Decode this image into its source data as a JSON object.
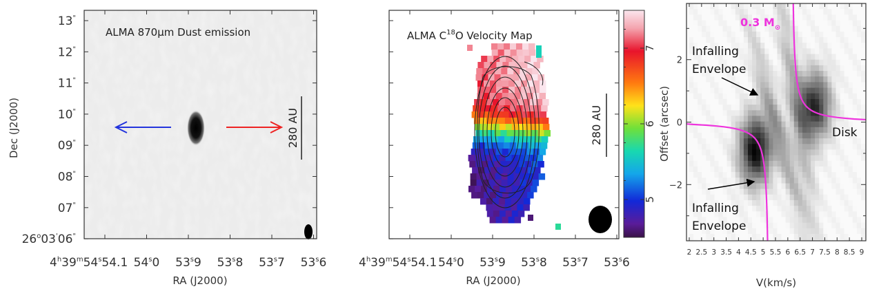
{
  "colors": {
    "blue_arrow": "#2233dd",
    "red_arrow": "#ee2222",
    "magenta": "#ee33dd",
    "axis_text": "#333333"
  },
  "chart_data": [
    {
      "type": "heatmap",
      "panel": "dust-map",
      "title": "ALMA 870μm Dust emission",
      "xlabel": "RA (J2000)",
      "ylabel": "Dec (J2000)",
      "xticks": [
        "54.1",
        "54.0",
        "53.9",
        "53.8",
        "53.7",
        "53.6"
      ],
      "x_first_prefix": "4",
      "x_first_h": "h",
      "x_first_mid": "39",
      "x_first_m": "m",
      "x_first_sec": "54",
      "x_sec_symbol": "s",
      "yticks": [
        "13",
        "12",
        "11",
        "10",
        "09",
        "08",
        "07",
        "06"
      ],
      "y_last_prefix": "26",
      "y_last_deg": "o",
      "y_last_mid": "03",
      "y_arcmin": "'",
      "y_arcsec": "\"",
      "scale_bar": "280 AU",
      "source_position": {
        "ra_s": 53.91,
        "dec_s": 9.65
      },
      "arrows": [
        {
          "direction": "left",
          "color": "blue"
        },
        {
          "direction": "right",
          "color": "red"
        }
      ]
    },
    {
      "type": "heatmap",
      "panel": "velocity-map",
      "title_prefix": "ALMA C",
      "title_sup": "18",
      "title_suffix": "O Velocity Map",
      "xlabel": "RA (J2000)",
      "xticks": [
        "54.1",
        "54.0",
        "53.9",
        "53.8",
        "53.7",
        "53.6"
      ],
      "x_first_prefix": "4",
      "x_first_h": "h",
      "x_first_mid": "39",
      "x_first_m": "m",
      "x_first_sec": "54",
      "x_sec_symbol": "s",
      "scale_bar": "280 AU",
      "colorbar": {
        "label_ticks": [
          "7",
          "6",
          "5"
        ],
        "range": [
          4.5,
          7.5
        ]
      },
      "velocity_gradient": {
        "north": 7.3,
        "south": 4.8
      }
    },
    {
      "type": "heatmap",
      "panel": "pv-diagram",
      "xlabel": "V(km/s)",
      "ylabel": "Offset (arcsec)",
      "xticks": [
        "2",
        "2.5",
        "3",
        "3.5",
        "4",
        "4.5",
        "5",
        "5.5",
        "6",
        "6.5",
        "7",
        "7.5",
        "8",
        "8.5",
        "9"
      ],
      "yticks": [
        "2",
        "0",
        "−2"
      ],
      "xlim": [
        2,
        9
      ],
      "ylim": [
        -3.8,
        3.8
      ],
      "mass_label": "0.3 M",
      "mass_symbol": "⊙",
      "annotations": [
        "Infalling",
        "Envelope",
        "Infalling",
        "Envelope",
        "Disk"
      ],
      "peaks": [
        {
          "v": 4.6,
          "offset": -0.8,
          "intensity": 1.0
        },
        {
          "v": 7.0,
          "offset": 0.6,
          "intensity": 0.85
        }
      ],
      "systemic_velocity": 5.8
    }
  ]
}
